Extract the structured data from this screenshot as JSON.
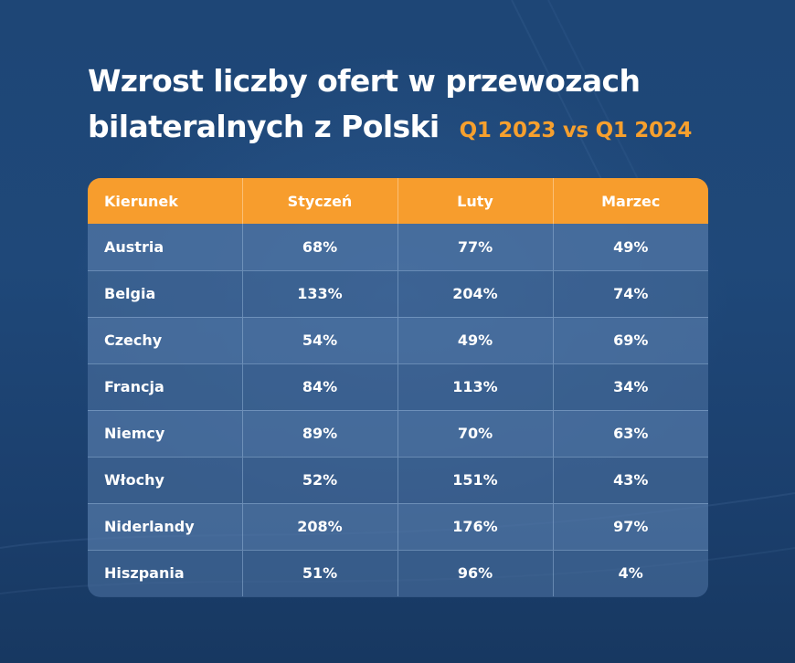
{
  "title": {
    "line1": "Wzrost liczby ofert w przewozach",
    "line2": "bilateralnych z Polski",
    "subtitle": "Q1 2023 vs Q1 2024"
  },
  "colors": {
    "background": "#1e4676",
    "header": "#f79d2d",
    "accent_text": "#f6a02e",
    "text": "#ffffff"
  },
  "chart_data": {
    "type": "table",
    "title": "Wzrost liczby ofert w przewozach bilateralnych z Polski",
    "subtitle": "Q1 2023 vs Q1 2024",
    "columns": [
      "Kierunek",
      "Styczeń",
      "Luty",
      "Marzec"
    ],
    "rows": [
      [
        "Austria",
        "68%",
        "77%",
        "49%"
      ],
      [
        "Belgia",
        "133%",
        "204%",
        "74%"
      ],
      [
        "Czechy",
        "54%",
        "49%",
        "69%"
      ],
      [
        "Francja",
        "84%",
        "113%",
        "34%"
      ],
      [
        "Niemcy",
        "89%",
        "70%",
        "63%"
      ],
      [
        "Włochy",
        "52%",
        "151%",
        "43%"
      ],
      [
        "Niderlandy",
        "208%",
        "176%",
        "97%"
      ],
      [
        "Hiszpania",
        "51%",
        "96%",
        "4%"
      ]
    ]
  }
}
